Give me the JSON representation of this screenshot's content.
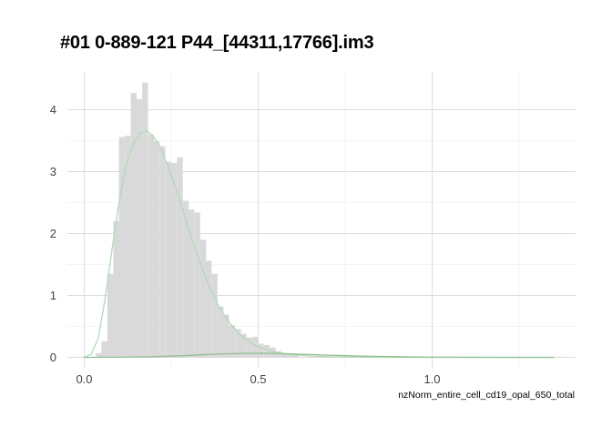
{
  "chart_data": {
    "type": "histogram",
    "title": "#01 0-889-121 P44_[44311,17766].im3",
    "xlabel": "nzNorm_entire_cell_cd19_opal_650_total",
    "ylabel": "",
    "xlim": [
      -0.05,
      1.42
    ],
    "ylim": [
      -0.2,
      4.6
    ],
    "x_ticks": [
      0.0,
      0.5,
      1.0
    ],
    "x_tick_labels": [
      "0.0",
      "0.5",
      "1.0"
    ],
    "y_ticks": [
      0,
      1,
      2,
      3,
      4
    ],
    "y_tick_labels": [
      "0",
      "1",
      "2",
      "3",
      "4"
    ],
    "grid": true,
    "bin_width": 0.01667,
    "bins": [
      {
        "x": 0.042,
        "y": 0.07
      },
      {
        "x": 0.058,
        "y": 0.26
      },
      {
        "x": 0.075,
        "y": 1.35
      },
      {
        "x": 0.092,
        "y": 2.2
      },
      {
        "x": 0.108,
        "y": 3.56
      },
      {
        "x": 0.125,
        "y": 3.58
      },
      {
        "x": 0.142,
        "y": 4.27
      },
      {
        "x": 0.158,
        "y": 4.17
      },
      {
        "x": 0.175,
        "y": 4.44
      },
      {
        "x": 0.192,
        "y": 3.6
      },
      {
        "x": 0.208,
        "y": 3.49
      },
      {
        "x": 0.225,
        "y": 3.41
      },
      {
        "x": 0.242,
        "y": 3.16
      },
      {
        "x": 0.258,
        "y": 3.14
      },
      {
        "x": 0.275,
        "y": 3.23
      },
      {
        "x": 0.292,
        "y": 2.53
      },
      {
        "x": 0.308,
        "y": 2.39
      },
      {
        "x": 0.325,
        "y": 2.34
      },
      {
        "x": 0.342,
        "y": 1.9
      },
      {
        "x": 0.358,
        "y": 1.56
      },
      {
        "x": 0.375,
        "y": 1.35
      },
      {
        "x": 0.392,
        "y": 0.82
      },
      {
        "x": 0.408,
        "y": 0.69
      },
      {
        "x": 0.425,
        "y": 0.52
      },
      {
        "x": 0.442,
        "y": 0.46
      },
      {
        "x": 0.458,
        "y": 0.38
      },
      {
        "x": 0.475,
        "y": 0.32
      },
      {
        "x": 0.492,
        "y": 0.33
      },
      {
        "x": 0.508,
        "y": 0.22
      },
      {
        "x": 0.525,
        "y": 0.2
      },
      {
        "x": 0.542,
        "y": 0.16
      },
      {
        "x": 0.558,
        "y": 0.1
      },
      {
        "x": 0.575,
        "y": 0.07
      },
      {
        "x": 0.592,
        "y": 0.05
      },
      {
        "x": 0.608,
        "y": 0.03
      }
    ],
    "curves": [
      {
        "color": "#b6d8b6",
        "points": [
          [
            0.0,
            0.0
          ],
          [
            0.02,
            0.05
          ],
          [
            0.04,
            0.3
          ],
          [
            0.06,
            0.95
          ],
          [
            0.08,
            1.75
          ],
          [
            0.1,
            2.5
          ],
          [
            0.12,
            3.1
          ],
          [
            0.14,
            3.45
          ],
          [
            0.16,
            3.62
          ],
          [
            0.18,
            3.66
          ],
          [
            0.2,
            3.56
          ],
          [
            0.22,
            3.38
          ],
          [
            0.24,
            3.1
          ],
          [
            0.26,
            2.78
          ],
          [
            0.28,
            2.44
          ],
          [
            0.3,
            2.08
          ],
          [
            0.32,
            1.74
          ],
          [
            0.34,
            1.42
          ],
          [
            0.36,
            1.14
          ],
          [
            0.38,
            0.9
          ],
          [
            0.4,
            0.7
          ],
          [
            0.42,
            0.54
          ],
          [
            0.44,
            0.41
          ],
          [
            0.46,
            0.31
          ],
          [
            0.48,
            0.23
          ],
          [
            0.5,
            0.17
          ],
          [
            0.55,
            0.08
          ],
          [
            0.6,
            0.04
          ],
          [
            0.65,
            0.02
          ],
          [
            0.7,
            0.01
          ],
          [
            0.8,
            0.003
          ],
          [
            0.9,
            0.0
          ],
          [
            1.0,
            0.0
          ],
          [
            1.1,
            0.0
          ],
          [
            1.2,
            0.0
          ],
          [
            1.35,
            0.0
          ]
        ]
      },
      {
        "color": "#93bf93",
        "points": [
          [
            0.0,
            0.0
          ],
          [
            0.1,
            0.002
          ],
          [
            0.2,
            0.01
          ],
          [
            0.3,
            0.03
          ],
          [
            0.35,
            0.045
          ],
          [
            0.4,
            0.055
          ],
          [
            0.45,
            0.062
          ],
          [
            0.5,
            0.065
          ],
          [
            0.55,
            0.062
          ],
          [
            0.6,
            0.055
          ],
          [
            0.65,
            0.045
          ],
          [
            0.7,
            0.035
          ],
          [
            0.8,
            0.02
          ],
          [
            0.9,
            0.01
          ],
          [
            1.0,
            0.004
          ],
          [
            1.1,
            0.001
          ],
          [
            1.2,
            0.0
          ],
          [
            1.35,
            0.0
          ]
        ]
      }
    ]
  }
}
